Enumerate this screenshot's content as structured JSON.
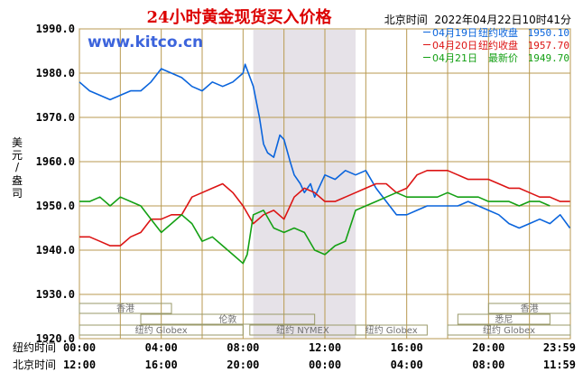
{
  "chart_data": {
    "type": "line",
    "title": "24小时黄金现货买入价格",
    "header_time": "北京时间  2022年04月22日10时41分",
    "watermark": "www.kitco.cn",
    "ylabel_chars": [
      "美",
      "元",
      "/",
      "盎",
      "司"
    ],
    "ylim": [
      1920,
      1990
    ],
    "yticks": [
      "1990.0",
      "1980.0",
      "1970.0",
      "1960.0",
      "1950.0",
      "1940.0",
      "1930.0",
      "1920.0"
    ],
    "xaxis_rows": [
      {
        "label": "纽约时间",
        "ticks": [
          "00:00",
          "04:00",
          "08:00",
          "12:00",
          "16:00",
          "20:00",
          "23:59"
        ]
      },
      {
        "label": "北京时间",
        "ticks": [
          "12:00",
          "16:00",
          "20:00",
          "00:00",
          "04:00",
          "08:00",
          "11:59"
        ]
      }
    ],
    "shaded_hours": [
      8.5,
      13.5
    ],
    "market_sessions": [
      {
        "name": "香港",
        "start": 0,
        "end": 4.5,
        "row": 0
      },
      {
        "name": "香港",
        "start": 20,
        "end": 24,
        "row": 0
      },
      {
        "name": "伦敦",
        "start": 3,
        "end": 11.5,
        "row": 1
      },
      {
        "name": "悉尼",
        "start": 18.5,
        "end": 23,
        "row": 2
      },
      {
        "name": "纽约 Globex",
        "start": 0,
        "end": 8,
        "row": 3
      },
      {
        "name": "纽约 NYMEX",
        "start": 8.33,
        "end": 13.5,
        "row": 3
      },
      {
        "name": "纽约 Globex",
        "start": 13.5,
        "end": 17,
        "row": 3
      },
      {
        "name": "纽约 Globex",
        "start": 18,
        "end": 24,
        "row": 3
      }
    ],
    "series": [
      {
        "name": "04月19日",
        "legend_text": "纽约收盘",
        "legend_value": "1950.10",
        "color": "#0a64dc",
        "x": [
          0,
          0.5,
          1,
          1.5,
          2,
          2.5,
          3,
          3.5,
          4,
          4.5,
          5,
          5.5,
          6,
          6.5,
          7,
          7.5,
          8,
          8.1,
          8.5,
          8.8,
          9,
          9.2,
          9.5,
          9.8,
          10,
          10.3,
          10.5,
          10.8,
          11,
          11.3,
          11.5,
          12,
          12.5,
          13,
          13.5,
          14,
          14.5,
          15,
          15.5,
          16,
          16.5,
          17,
          17.5,
          18,
          18.5,
          19,
          19.5,
          20,
          20.5,
          21,
          21.5,
          22,
          22.5,
          23,
          23.5,
          23.98
        ],
        "y": [
          1978,
          1976,
          1975,
          1974,
          1975,
          1976,
          1976,
          1978,
          1981,
          1980,
          1979,
          1977,
          1976,
          1978,
          1977,
          1978,
          1980,
          1982,
          1977,
          1970,
          1964,
          1962,
          1961,
          1966,
          1965,
          1960,
          1957,
          1955,
          1953,
          1955,
          1952,
          1957,
          1956,
          1958,
          1957,
          1958,
          1954,
          1951,
          1948,
          1948,
          1949,
          1950,
          1950,
          1950,
          1950,
          1951,
          1950,
          1949,
          1948,
          1946,
          1945,
          1946,
          1947,
          1946,
          1948,
          1945
        ]
      },
      {
        "name": "04月20日",
        "legend_text": "纽约收盘",
        "legend_value": "1957.70",
        "color": "#dc1414",
        "x": [
          0,
          0.5,
          1,
          1.5,
          2,
          2.5,
          3,
          3.5,
          4,
          4.5,
          5,
          5.5,
          6,
          6.5,
          7,
          7.5,
          8,
          8.5,
          9,
          9.5,
          10,
          10.5,
          11,
          11.5,
          12,
          12.5,
          13,
          13.5,
          14,
          14.5,
          15,
          15.5,
          16,
          16.5,
          17,
          17.5,
          18,
          18.5,
          19,
          19.5,
          20,
          20.5,
          21,
          21.5,
          22,
          22.5,
          23,
          23.5,
          23.98
        ],
        "y": [
          1943,
          1943,
          1942,
          1941,
          1941,
          1943,
          1944,
          1947,
          1947,
          1948,
          1948,
          1952,
          1953,
          1954,
          1955,
          1953,
          1950,
          1946,
          1948,
          1949,
          1947,
          1952,
          1954,
          1953,
          1951,
          1951,
          1952,
          1953,
          1954,
          1955,
          1955,
          1953,
          1954,
          1957,
          1958,
          1958,
          1958,
          1957,
          1956,
          1956,
          1956,
          1955,
          1954,
          1954,
          1953,
          1952,
          1952,
          1951,
          1951
        ]
      },
      {
        "name": "04月21日",
        "legend_text": "最新价",
        "legend_value": "1949.70",
        "color": "#14a014",
        "x": [
          0,
          0.5,
          1,
          1.5,
          2,
          2.5,
          3,
          3.5,
          4,
          4.5,
          5,
          5.5,
          6,
          6.5,
          7,
          7.5,
          8,
          8.2,
          8.5,
          9,
          9.5,
          10,
          10.5,
          11,
          11.5,
          12,
          12.5,
          13,
          13.5,
          14,
          14.5,
          15,
          15.5,
          16,
          16.5,
          17,
          17.5,
          18,
          18.5,
          19,
          19.5,
          20,
          20.5,
          21,
          21.5,
          22,
          22.5,
          23
        ],
        "y": [
          1951,
          1951,
          1952,
          1950,
          1952,
          1951,
          1950,
          1947,
          1944,
          1946,
          1948,
          1946,
          1942,
          1943,
          1941,
          1939,
          1937,
          1939,
          1948,
          1949,
          1945,
          1944,
          1945,
          1944,
          1940,
          1939,
          1941,
          1942,
          1949,
          1950,
          1951,
          1952,
          1953,
          1952,
          1952,
          1952,
          1952,
          1953,
          1952,
          1952,
          1952,
          1951,
          1951,
          1951,
          1950,
          1951,
          1951,
          1950
        ]
      }
    ]
  }
}
